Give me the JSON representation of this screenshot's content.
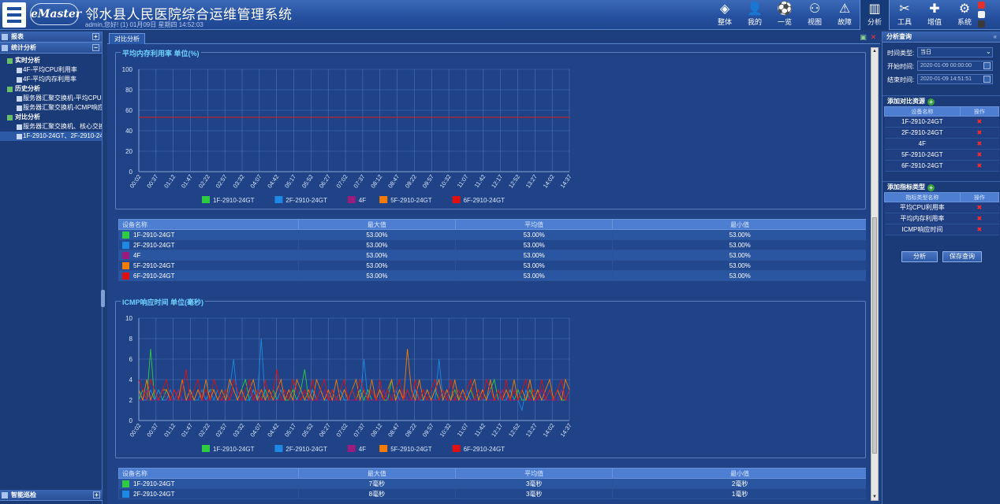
{
  "header": {
    "brand": "eMaster",
    "title": "邻水县人民医院综合运维管理系统",
    "user_info": "admin,您好! (1) 01月09日 星期四 14:52:03"
  },
  "nav": [
    {
      "label": "整体",
      "icon": "layers-icon",
      "glyph": "◈"
    },
    {
      "label": "我的",
      "icon": "user-icon",
      "glyph": "👤"
    },
    {
      "label": "一览",
      "icon": "soccer-icon",
      "glyph": "⚽"
    },
    {
      "label": "视图",
      "icon": "topology-icon",
      "glyph": "⚇"
    },
    {
      "label": "故障",
      "icon": "warning-icon",
      "glyph": "⚠"
    },
    {
      "label": "分析",
      "icon": "chart-icon",
      "glyph": "▥"
    },
    {
      "label": "工具",
      "icon": "tools-icon",
      "glyph": "✂"
    },
    {
      "label": "增值",
      "icon": "plus-icon",
      "glyph": "✚"
    },
    {
      "label": "系统",
      "icon": "gear-icon",
      "glyph": "⚙"
    }
  ],
  "sidebar": {
    "top_panel": "报表",
    "panel": "统计分析",
    "tree": [
      {
        "type": "g",
        "label": "实时分析"
      },
      {
        "type": "l",
        "label": "4F-平均CPU利用率"
      },
      {
        "type": "l",
        "label": "4F-平均内存利用率"
      },
      {
        "type": "g",
        "label": "历史分析"
      },
      {
        "type": "l",
        "label": "服务器汇聚交换机-平均CPU"
      },
      {
        "type": "l",
        "label": "服务器汇聚交换机-ICMP响应"
      },
      {
        "type": "g",
        "label": "对比分析"
      },
      {
        "type": "l",
        "label": "服务器汇聚交换机、核心交换"
      },
      {
        "type": "l",
        "label": "1F-2910-24GT、2F-2910-24G",
        "selected": true
      }
    ],
    "bottom_panel": "智能巡检"
  },
  "main": {
    "tab": "对比分析"
  },
  "legend": [
    {
      "name": "1F-2910-24GT",
      "color": "#2ecc40"
    },
    {
      "name": "2F-2910-24GT",
      "color": "#1e88e5"
    },
    {
      "name": "4F",
      "color": "#9b1b7e"
    },
    {
      "name": "5F-2910-24GT",
      "color": "#f57c00"
    },
    {
      "name": "6F-2910-24GT",
      "color": "#e01010"
    }
  ],
  "x_ticks": [
    "00:02",
    "00:37",
    "01:12",
    "01:47",
    "02:22",
    "02:57",
    "03:32",
    "04:07",
    "04:42",
    "05:17",
    "05:52",
    "06:27",
    "07:02",
    "07:37",
    "08:12",
    "08:47",
    "09:22",
    "09:57",
    "10:32",
    "11:07",
    "11:42",
    "12:17",
    "12:52",
    "13:27",
    "14:02",
    "14:37"
  ],
  "chart_data": [
    {
      "type": "line",
      "title": "平均内存利用率 单位(%)",
      "ylim": [
        0,
        100
      ],
      "yticks": [
        0,
        20,
        40,
        60,
        80,
        100
      ],
      "series": [
        {
          "name": "1F-2910-24GT",
          "values": [
            53,
            53
          ]
        },
        {
          "name": "2F-2910-24GT",
          "values": [
            53,
            53
          ]
        },
        {
          "name": "4F",
          "values": [
            53,
            53
          ]
        },
        {
          "name": "5F-2910-24GT",
          "values": [
            53,
            53
          ]
        },
        {
          "name": "6F-2910-24GT",
          "values": [
            53,
            53
          ]
        }
      ]
    },
    {
      "type": "line",
      "title": "ICMP响应时间 单位(毫秒)",
      "ylim": [
        0,
        10
      ],
      "yticks": [
        0,
        2,
        4,
        6,
        8,
        10
      ],
      "series": [
        {
          "name": "1F-2910-24GT",
          "values": [
            2,
            3,
            2,
            7,
            2,
            3,
            2,
            3,
            2,
            2,
            3,
            2,
            2,
            3,
            2,
            3,
            2,
            2,
            3,
            3,
            2,
            2,
            3,
            2,
            3,
            2,
            3,
            4,
            2,
            3,
            2,
            2,
            3,
            2,
            3,
            2,
            3,
            2,
            2,
            3,
            2,
            3,
            5,
            2,
            3,
            2,
            3,
            2,
            2,
            3,
            2,
            3,
            2,
            2,
            3,
            2,
            3,
            2,
            3,
            2,
            2,
            3,
            2,
            2,
            4,
            2,
            3,
            2,
            3,
            2,
            3,
            2,
            2,
            3,
            2,
            3,
            2,
            3,
            2,
            2,
            3,
            2,
            3,
            2,
            3,
            2,
            2,
            3,
            2,
            3,
            4,
            2,
            3,
            2,
            3,
            2,
            3,
            2,
            2,
            3,
            2,
            3,
            2,
            2,
            3,
            2,
            3,
            2,
            2,
            3
          ]
        },
        {
          "name": "2F-2910-24GT",
          "values": [
            3,
            2,
            2,
            3,
            2,
            3,
            2,
            2,
            3,
            2,
            3,
            2,
            2,
            3,
            2,
            2,
            3,
            2,
            3,
            2,
            3,
            2,
            2,
            3,
            6,
            2,
            3,
            2,
            2,
            3,
            2,
            8,
            2,
            3,
            2,
            2,
            3,
            2,
            3,
            2,
            2,
            3,
            2,
            2,
            3,
            2,
            3,
            2,
            2,
            3,
            2,
            3,
            2,
            2,
            3,
            2,
            2,
            6,
            2,
            3,
            2,
            2,
            3,
            2,
            2,
            3,
            2,
            3,
            2,
            2,
            3,
            2,
            2,
            3,
            2,
            2,
            6,
            2,
            3,
            2,
            2,
            3,
            2,
            3,
            2,
            2,
            3,
            2,
            2,
            3,
            2,
            3,
            2,
            2,
            3,
            2,
            2,
            1,
            3,
            2,
            2,
            3,
            2,
            2,
            3,
            2,
            2,
            3,
            2,
            3
          ]
        },
        {
          "name": "4F",
          "values": [
            2,
            2,
            3,
            2,
            2,
            2,
            3,
            2,
            2,
            2,
            3,
            2,
            2,
            2,
            2,
            3,
            2,
            2,
            2,
            3,
            2,
            2,
            2,
            2,
            3,
            2,
            2,
            2,
            3,
            2,
            2,
            2,
            2,
            3,
            2,
            2,
            2,
            2,
            3,
            2,
            2,
            2,
            3,
            2,
            2,
            2,
            2,
            3,
            2,
            2,
            2,
            2,
            3,
            2,
            2,
            2,
            2,
            3,
            2,
            2,
            2,
            2,
            3,
            2,
            2,
            2,
            2,
            3,
            2,
            2,
            2,
            2,
            3,
            2,
            2,
            2,
            2,
            3,
            2,
            2,
            2,
            2,
            3,
            2,
            2,
            2,
            2,
            3,
            2,
            2,
            2,
            2,
            3,
            2,
            2,
            2,
            2,
            3,
            2,
            2,
            2,
            2,
            3,
            2,
            2,
            2,
            2,
            3,
            2,
            2
          ]
        },
        {
          "name": "5F-2910-24GT",
          "values": [
            3,
            2,
            4,
            2,
            3,
            2,
            3,
            3,
            2,
            3,
            2,
            4,
            2,
            3,
            2,
            3,
            2,
            4,
            2,
            3,
            2,
            3,
            2,
            4,
            3,
            2,
            3,
            2,
            3,
            4,
            2,
            3,
            2,
            3,
            2,
            3,
            4,
            2,
            3,
            2,
            4,
            3,
            2,
            3,
            2,
            4,
            3,
            2,
            3,
            2,
            4,
            2,
            3,
            2,
            3,
            4,
            2,
            3,
            2,
            4,
            2,
            3,
            2,
            3,
            4,
            2,
            3,
            2,
            7,
            3,
            2,
            4,
            2,
            3,
            2,
            3,
            4,
            2,
            3,
            2,
            4,
            2,
            3,
            2,
            3,
            4,
            2,
            3,
            2,
            4,
            2,
            3,
            2,
            3,
            2,
            4,
            2,
            3,
            2,
            4,
            2,
            3,
            2,
            3,
            4,
            2,
            3,
            2,
            4,
            3
          ]
        },
        {
          "name": "6F-2910-24GT",
          "values": [
            4,
            3,
            2,
            4,
            3,
            2,
            3,
            4,
            2,
            3,
            2,
            3,
            5,
            2,
            3,
            4,
            2,
            3,
            2,
            4,
            3,
            2,
            3,
            2,
            4,
            3,
            2,
            3,
            4,
            2,
            3,
            2,
            4,
            2,
            3,
            5,
            2,
            3,
            2,
            4,
            3,
            2,
            3,
            2,
            4,
            2,
            3,
            4,
            2,
            3,
            2,
            3,
            4,
            2,
            3,
            2,
            4,
            3,
            2,
            3,
            2,
            4,
            2,
            3,
            2,
            3,
            4,
            2,
            3,
            2,
            4,
            2,
            3,
            2,
            3,
            4,
            2,
            3,
            2,
            4,
            2,
            3,
            2,
            3,
            4,
            2,
            3,
            2,
            4,
            3,
            2,
            3,
            2,
            4,
            2,
            3,
            2,
            3,
            4,
            2,
            3,
            2,
            4,
            2,
            3,
            2,
            3,
            4,
            2,
            3
          ]
        }
      ]
    }
  ],
  "table1": {
    "headers": [
      "设备名称",
      "最大值",
      "平均值",
      "最小值"
    ],
    "rows": [
      {
        "name": "1F-2910-24GT",
        "max": "53.00%",
        "avg": "53.00%",
        "min": "53.00%"
      },
      {
        "name": "2F-2910-24GT",
        "max": "53.00%",
        "avg": "53.00%",
        "min": "53.00%"
      },
      {
        "name": "4F",
        "max": "53.00%",
        "avg": "53.00%",
        "min": "53.00%"
      },
      {
        "name": "5F-2910-24GT",
        "max": "53.00%",
        "avg": "53.00%",
        "min": "53.00%"
      },
      {
        "name": "6F-2910-24GT",
        "max": "53.00%",
        "avg": "53.00%",
        "min": "53.00%"
      }
    ]
  },
  "table2": {
    "headers": [
      "设备名称",
      "最大值",
      "平均值",
      "最小值"
    ],
    "rows": [
      {
        "name": "1F-2910-24GT",
        "max": "7毫秒",
        "avg": "3毫秒",
        "min": "2毫秒"
      },
      {
        "name": "2F-2910-24GT",
        "max": "8毫秒",
        "avg": "3毫秒",
        "min": "1毫秒"
      }
    ]
  },
  "right": {
    "title": "分析查询",
    "time_type_label": "时间类型:",
    "time_type_value": "当日",
    "start_label": "开始时间:",
    "start_value": "2020-01-09 00:00:00",
    "end_label": "结束时间:",
    "end_value": "2020-01-09 14:51:51",
    "add_resource": "添加对比资源",
    "res_headers": [
      "设备名称",
      "操作"
    ],
    "resources": [
      "1F-2910-24GT",
      "2F-2910-24GT",
      "4F",
      "5F-2910-24GT",
      "6F-2910-24GT"
    ],
    "add_metric": "添加指标类型",
    "metric_headers": [
      "指标类型名称",
      "操作"
    ],
    "metrics": [
      "平均CPU利用率",
      "平均内存利用率",
      "ICMP响应时间"
    ],
    "analyze_btn": "分析",
    "save_btn": "保存查询"
  }
}
